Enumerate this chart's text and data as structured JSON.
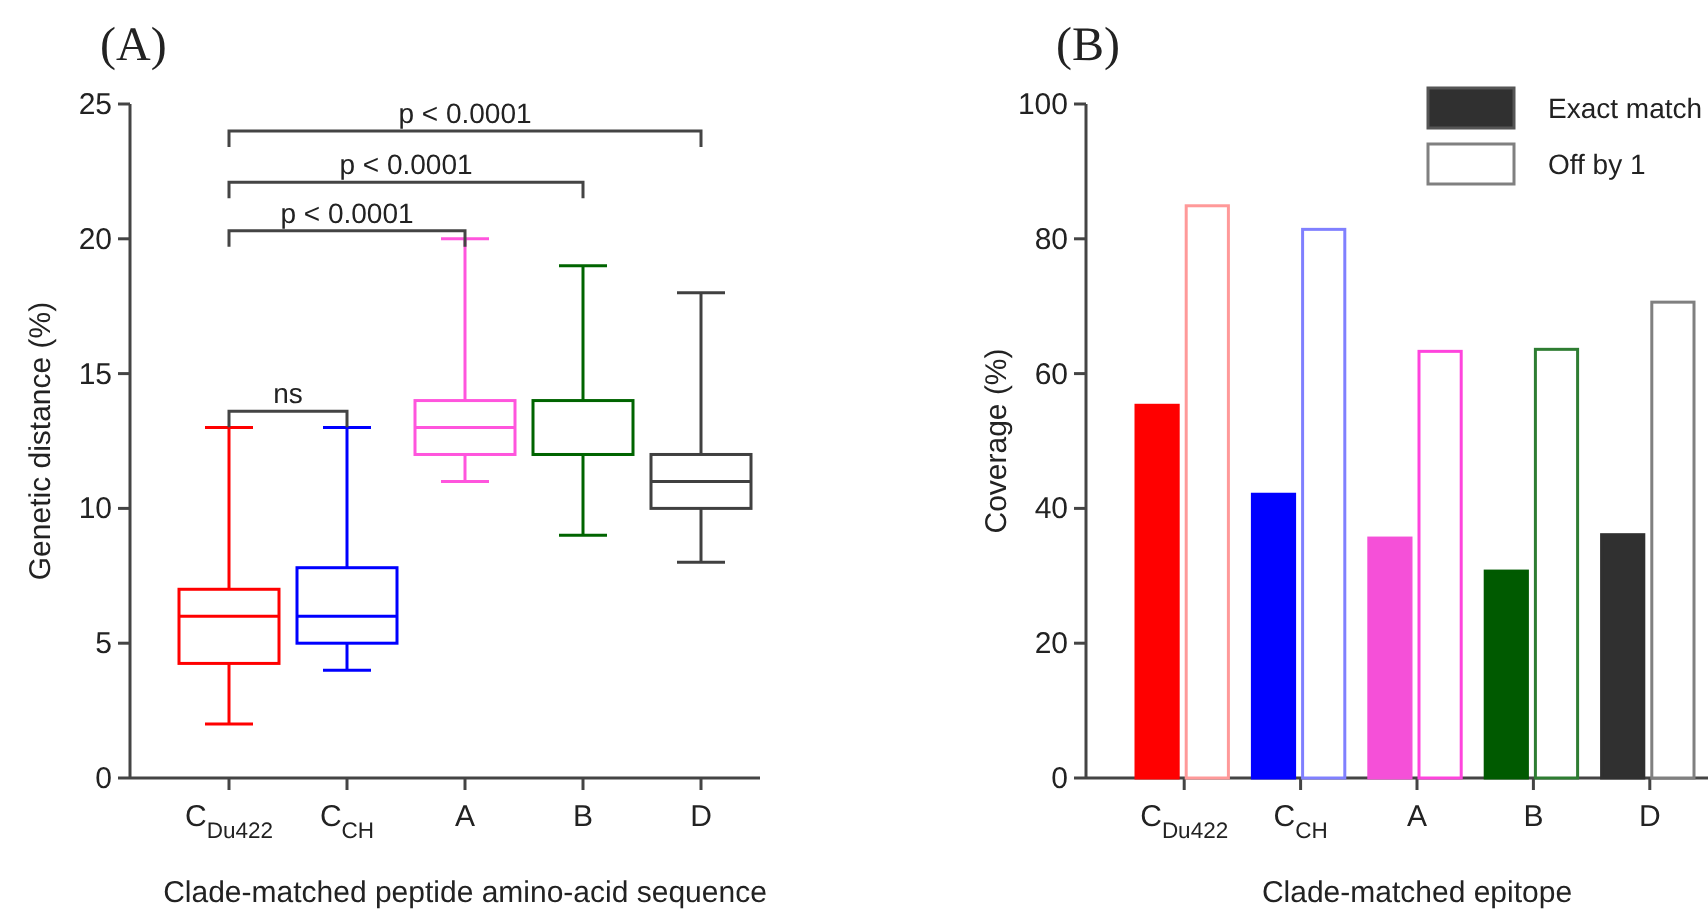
{
  "chart_data": [
    {
      "type": "box",
      "title": "(A)",
      "xlabel": "Clade-matched peptide amino-acid sequence",
      "ylabel": "Genetic distance (%)",
      "categories": [
        "C$_{Du422}$",
        "C$_{CH}$",
        "A",
        "B",
        "D"
      ],
      "colors": [
        "#ff0000",
        "#0000ff",
        "#ff55dd",
        "#006400",
        "#404040"
      ],
      "boxes": [
        {
          "low": 2,
          "q1": 4.25,
          "median": 6,
          "q3": 7,
          "high": 13
        },
        {
          "low": 4,
          "q1": 5,
          "median": 6,
          "q3": 7.8,
          "high": 13
        },
        {
          "low": 11,
          "q1": 12,
          "median": 13,
          "q3": 14,
          "high": 20
        },
        {
          "low": 9,
          "q1": 12,
          "median": 12,
          "q3": 14,
          "high": 19
        },
        {
          "low": 8,
          "q1": 10,
          "median": 11,
          "q3": 12,
          "high": 18
        }
      ],
      "ylim": [
        0,
        25
      ],
      "yticks": [
        0,
        5,
        10,
        15,
        20,
        25
      ],
      "annotations": [
        "ns",
        "p < 0.0001",
        "p < 0.0001",
        "p < 0.0001"
      ]
    },
    {
      "type": "bar",
      "title": "(B)",
      "xlabel": "Clade-matched epitope",
      "ylabel": "Coverage (%)",
      "categories": [
        "C$_{Du422}$",
        "C$_{CH}$",
        "A",
        "B",
        "D"
      ],
      "legend": "top right",
      "series": [
        {
          "name": "Exact match",
          "color": "#303030",
          "colors": [
            "#ff0000",
            "#0000ff",
            "#f550d8",
            "#005a00",
            "#303030"
          ],
          "values": [
            55.3,
            42.1,
            35.6,
            30.7,
            36.1
          ]
        },
        {
          "name": "Off by 1",
          "color": "#808080",
          "colors": [
            "#ff9999",
            "#8080ff",
            "#ff44dd",
            "#2e7d32",
            "#808080"
          ],
          "values": [
            84.9,
            81.4,
            63.3,
            63.6,
            70.6
          ]
        }
      ],
      "ylim": [
        0,
        100
      ],
      "yticks": [
        0,
        20,
        40,
        60,
        80,
        100
      ]
    }
  ]
}
